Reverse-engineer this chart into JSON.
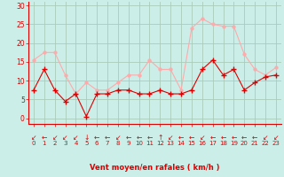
{
  "x": [
    0,
    1,
    2,
    3,
    4,
    5,
    6,
    7,
    8,
    9,
    10,
    11,
    12,
    13,
    14,
    15,
    16,
    17,
    18,
    19,
    20,
    21,
    22,
    23
  ],
  "avg_wind": [
    7.5,
    13,
    7.5,
    4.5,
    6.5,
    0.5,
    6.5,
    6.5,
    7.5,
    7.5,
    6.5,
    6.5,
    7.5,
    6.5,
    6.5,
    7.5,
    13,
    15.5,
    11.5,
    13,
    7.5,
    9.5,
    11,
    11.5
  ],
  "gust_wind": [
    15.5,
    17.5,
    17.5,
    11.5,
    6.5,
    9.5,
    7.5,
    7.5,
    9.5,
    11.5,
    11.5,
    15.5,
    13,
    13,
    7.5,
    24,
    26.5,
    25,
    24.5,
    24.5,
    17,
    13,
    11.5,
    13.5
  ],
  "avg_color": "#dd0000",
  "gust_color": "#ffaaaa",
  "bg_color": "#cceee8",
  "grid_color": "#aaccbb",
  "tick_color": "#dd0000",
  "xlabel": "Vent moyen/en rafales ( km/h )",
  "xlabel_color": "#dd0000",
  "yticks": [
    0,
    5,
    10,
    15,
    20,
    25,
    30
  ],
  "ylim": [
    -1.5,
    31
  ],
  "xlim": [
    -0.5,
    23.5
  ]
}
